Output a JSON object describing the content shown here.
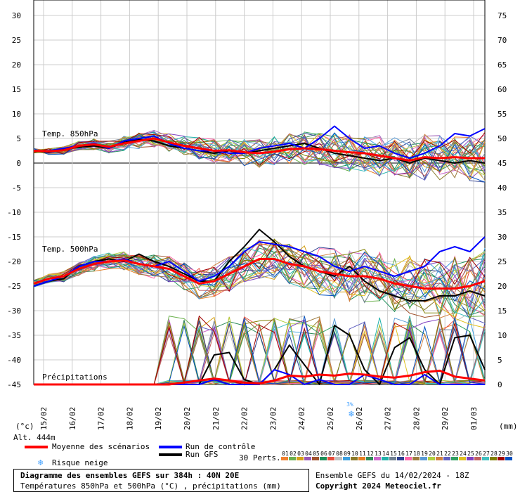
{
  "chart_data": {
    "type": "line",
    "title": "Diagramme des ensembles GEFS sur 384h : 40N 20E",
    "subtitle": "Températures 850hPa et 500hPa (°C) , précipitations (mm)",
    "left_axis": {
      "unit": "(°c)",
      "ticks": [
        30,
        25,
        20,
        15,
        10,
        5,
        0,
        -5,
        -10,
        -15,
        -20,
        -25,
        -30,
        -35,
        -40,
        -45
      ]
    },
    "right_axis": {
      "unit": "(mm)",
      "ticks": [
        75,
        70,
        65,
        60,
        55,
        50,
        45,
        40,
        35,
        30,
        25,
        20,
        15,
        10,
        5,
        0
      ]
    },
    "x_ticks": [
      "15/02",
      "16/02",
      "17/02",
      "18/02",
      "19/02",
      "20/02",
      "21/02",
      "22/02",
      "23/02",
      "24/02",
      "25/02",
      "26/02",
      "27/02",
      "28/02",
      "29/02",
      "01/03"
    ],
    "grid": true,
    "altitude": "Alt. 444m",
    "series_labels": {
      "t850": "Temp. 850hPa",
      "t500": "Temp. 500hPa",
      "precip": "Précipitations"
    },
    "series": [
      {
        "name": "Moyenne des scénarios",
        "group": "t850",
        "values": [
          2.5,
          2.4,
          2.6,
          3.5,
          3.8,
          3.3,
          4.0,
          4.5,
          5.0,
          4.2,
          3.5,
          3.0,
          2.5,
          2.6,
          2.2,
          2.0,
          2.3,
          2.8,
          3.0,
          2.8,
          2.5,
          2.2,
          2.0,
          1.5,
          1.0,
          0.5,
          1.2,
          1.0,
          1.2,
          1.0,
          1.0
        ]
      },
      {
        "name": "Moyenne des scénarios",
        "group": "t500",
        "values": [
          -24.5,
          -23.5,
          -23.0,
          -21.5,
          -20.5,
          -20.0,
          -19.8,
          -20.5,
          -21.0,
          -21.5,
          -23.0,
          -24.5,
          -24.0,
          -22.5,
          -21.0,
          -19.5,
          -19.5,
          -20.5,
          -21.0,
          -22.0,
          -22.5,
          -23.0,
          -23.0,
          -23.5,
          -24.5,
          -25.0,
          -25.5,
          -25.5,
          -25.5,
          -25.0,
          -24.0
        ]
      },
      {
        "name": "Moyenne des scénarios",
        "group": "precip",
        "values": [
          0,
          0,
          0,
          0,
          0,
          0,
          0,
          0,
          0,
          0,
          0.4,
          0.8,
          1.2,
          0.8,
          0.4,
          0.2,
          0.8,
          1.8,
          1.6,
          2.0,
          1.8,
          2.2,
          2.0,
          1.6,
          1.4,
          1.8,
          2.5,
          2.8,
          1.6,
          1.2,
          0.8
        ]
      },
      {
        "name": "Run de contrôle",
        "group": "t850",
        "values": [
          2.5,
          2.5,
          3.0,
          3.5,
          4.0,
          3.0,
          4.5,
          5.0,
          5.5,
          4.0,
          3.0,
          2.5,
          2.5,
          2.0,
          2.0,
          3.0,
          3.5,
          4.0,
          3.0,
          5.0,
          7.5,
          5.0,
          3.0,
          3.5,
          2.0,
          1.0,
          2.0,
          3.5,
          6.0,
          5.5,
          7.0
        ]
      },
      {
        "name": "Run de contrôle",
        "group": "t500",
        "values": [
          -25.0,
          -24.0,
          -23.0,
          -21.0,
          -20.0,
          -20.0,
          -19.5,
          -20.5,
          -21.0,
          -20.0,
          -22.0,
          -24.0,
          -23.0,
          -21.0,
          -18.0,
          -16.0,
          -16.5,
          -17.0,
          -18.0,
          -19.0,
          -21.0,
          -22.0,
          -21.0,
          -22.0,
          -23.0,
          -22.0,
          -21.0,
          -18.0,
          -17.0,
          -18.0,
          -15.0
        ]
      },
      {
        "name": "Run de contrôle",
        "group": "precip",
        "values": [
          0,
          0,
          0,
          0,
          0,
          0,
          0,
          0,
          0,
          0,
          0,
          0,
          1.0,
          0,
          0,
          0,
          3.0,
          2.0,
          0,
          1.0,
          0,
          0,
          2.0,
          1.0,
          0,
          0,
          2.0,
          0,
          0,
          0,
          0
        ]
      },
      {
        "name": "Run GFS",
        "group": "t850",
        "values": [
          2.5,
          2.2,
          2.8,
          3.2,
          3.5,
          3.0,
          4.2,
          4.8,
          4.5,
          3.5,
          3.0,
          2.5,
          2.0,
          2.5,
          2.0,
          2.5,
          3.0,
          3.5,
          4.0,
          3.0,
          2.0,
          1.5,
          1.0,
          0.5,
          1.0,
          0.0,
          1.0,
          0.5,
          0.0,
          0.5,
          0.0
        ]
      },
      {
        "name": "Run GFS",
        "group": "t500",
        "values": [
          -25.0,
          -24.0,
          -23.5,
          -21.0,
          -20.0,
          -19.5,
          -20.0,
          -18.5,
          -20.0,
          -21.0,
          -22.5,
          -24.0,
          -24.0,
          -20.0,
          -17.0,
          -13.5,
          -16.0,
          -19.0,
          -21.0,
          -22.0,
          -23.0,
          -21.0,
          -24.0,
          -26.0,
          -27.0,
          -28.0,
          -28.0,
          -27.0,
          -27.0,
          -26.0,
          -27.0
        ]
      },
      {
        "name": "Run GFS",
        "group": "precip",
        "values": [
          0,
          0,
          0,
          0,
          0,
          0,
          0,
          0,
          0,
          0,
          0,
          0,
          6.0,
          6.5,
          1.0,
          0,
          3.0,
          8.0,
          4.0,
          0,
          12.0,
          10.0,
          3.0,
          0,
          7.5,
          9.5,
          3.0,
          0,
          9.5,
          10.0,
          3.0
        ]
      }
    ]
  },
  "legend": {
    "mean": "Moyenne des scénarios",
    "control": "Run de contrôle",
    "gfs": "Run GFS",
    "snow": "Risque neige",
    "perts_label": "30 Perts.",
    "perts": [
      "01",
      "02",
      "03",
      "04",
      "05",
      "06",
      "07",
      "08",
      "09",
      "10",
      "11",
      "12",
      "13",
      "14",
      "15",
      "16",
      "17",
      "18",
      "19",
      "20",
      "21",
      "22",
      "23",
      "24",
      "25",
      "26",
      "27",
      "28",
      "29",
      "30"
    ],
    "pert_colors": [
      "#f08030",
      "#6ab04c",
      "#d4a017",
      "#9b59b6",
      "#a0522d",
      "#1e8f5a",
      "#e74c3c",
      "#c0c0c0",
      "#3ca0e0",
      "#8a7a2a",
      "#e67e22",
      "#2e8b57",
      "#cc66cc",
      "#20b2aa",
      "#708090",
      "#2c3e90",
      "#ff66aa",
      "#9c7b3e",
      "#5a9bd5",
      "#b0d040",
      "#d08040",
      "#6060c0",
      "#30a060",
      "#e0c020",
      "#8040c0",
      "#c06060",
      "#40c0c0",
      "#808000",
      "#a00000",
      "#0050c0"
    ],
    "mean_color": "#ff0000",
    "control_color": "#0000ff",
    "gfs_color": "#000000",
    "snow_color": "#40a0ff"
  },
  "snow_percent": "3%",
  "footer": {
    "title": "Diagramme des ensembles GEFS sur 384h : 40N 20E",
    "subtitle": "Températures 850hPa et 500hPa (°C) , précipitations (mm)",
    "run": "Ensemble GEFS du 14/02/2024 - 18Z",
    "copyright": "Copyright 2024 Meteociel.fr"
  }
}
